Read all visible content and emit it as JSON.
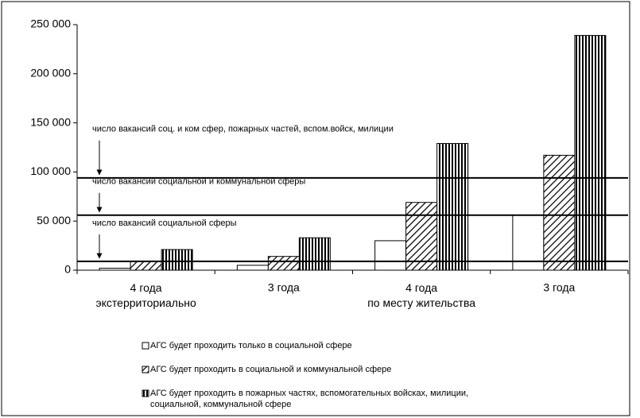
{
  "chart_data": {
    "type": "bar",
    "categories": [
      "4 года\nэкстерриториально",
      "3 года",
      "4 года\nпо месту жительства",
      "3 года"
    ],
    "series": [
      {
        "name": "АГС будет проходить только в социальной сфере",
        "color": "#ffffff",
        "pattern": "none",
        "values": [
          2000,
          5000,
          30000,
          56000
        ]
      },
      {
        "name": "АГС будет проходить в социальной и коммунальной сфере",
        "color": "#000000",
        "pattern": "diagonal",
        "values": [
          9000,
          14000,
          69000,
          117000
        ]
      },
      {
        "name": "АГС будет проходить в пожарных частях, вспомогательных войсках, милиции,\nсоциальной, коммунальной сфере",
        "color": "#000000",
        "pattern": "vertical",
        "values": [
          21000,
          33000,
          129000,
          239000
        ]
      }
    ],
    "reference_lines": [
      {
        "value": 94000,
        "label": "число вакансий соц. и ком сфер, пожарных частей, вспом.войск, милиции"
      },
      {
        "value": 56000,
        "label": "число вакансий социальной и коммунальной сферы"
      },
      {
        "value": 9000,
        "label": "число вакансий социальной сферы"
      }
    ],
    "ylim": [
      0,
      250000
    ],
    "yticks": [
      {
        "value": 0,
        "label": "0"
      },
      {
        "value": 50000,
        "label": "50 000"
      },
      {
        "value": 100000,
        "label": "100 000"
      },
      {
        "value": 150000,
        "label": "150 000"
      },
      {
        "value": 200000,
        "label": "200 000"
      },
      {
        "value": 250000,
        "label": "250 000"
      }
    ],
    "grid": false
  }
}
